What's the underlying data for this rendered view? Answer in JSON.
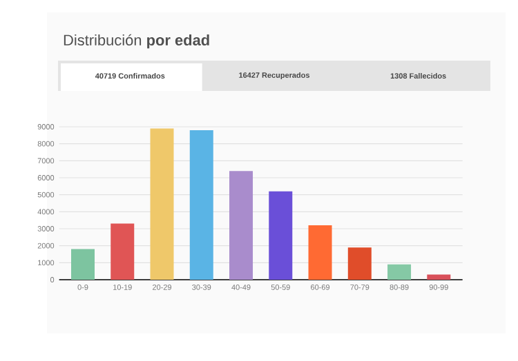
{
  "chart_data": {
    "type": "bar",
    "title": "Distribución **por edad**",
    "annotations": [
      "40719 Confirmados",
      "16427 Recuperados",
      "1308 Fallecidos"
    ],
    "categories": [
      "0-9",
      "10-19",
      "20-29",
      "30-39",
      "40-49",
      "50-59",
      "60-69",
      "70-79",
      "80-89",
      "90-99"
    ],
    "values": [
      1800,
      3300,
      8900,
      8800,
      6400,
      5200,
      3200,
      1900,
      900,
      300
    ],
    "colors": [
      "#7dc4a0",
      "#e05555",
      "#efc86a",
      "#5ab4e5",
      "#a98ccc",
      "#6a4fd8",
      "#ff6a33",
      "#e04d2a",
      "#85c9a5",
      "#d9505a"
    ],
    "ylim": [
      0,
      9000
    ],
    "yticks": [
      0,
      1000,
      2000,
      3000,
      4000,
      5000,
      6000,
      7000,
      8000,
      9000
    ],
    "grid": "y"
  }
}
